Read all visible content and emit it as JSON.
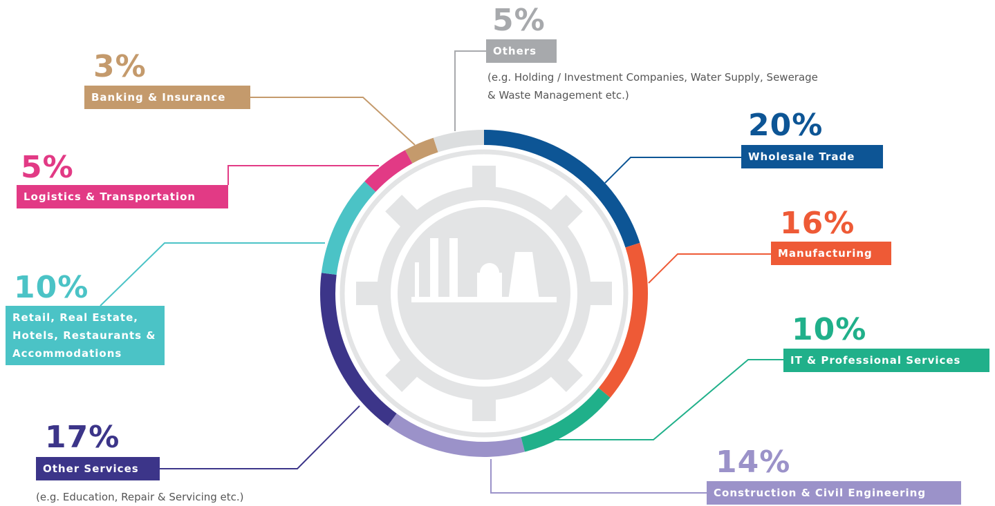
{
  "chart_data": {
    "type": "donut",
    "categories": [
      "Wholesale Trade",
      "Manufacturing",
      "IT & Professional Services",
      "Construction & Civil Engineering",
      "Other Services",
      "Retail, Real Estate, Hotels, Restaurants & Accommodations",
      "Logistics & Transportation",
      "Banking & Insurance",
      "Others"
    ],
    "values": [
      20,
      16,
      10,
      14,
      17,
      10,
      5,
      3,
      5
    ],
    "value_labels": [
      "20%",
      "16%",
      "10%",
      "14%",
      "17%",
      "10%",
      "5%",
      "3%",
      "5%"
    ],
    "colors": [
      "#0d5595",
      "#ee5a36",
      "#20b08a",
      "#9b92c9",
      "#3c3589",
      "#4bc3c6",
      "#e23a85",
      "#c49a6c",
      "#a7a9ac"
    ],
    "annotations": [
      "(e.g. Education, Repair & Servicing etc.)",
      "(e.g. Holding / Investment Companies, Water Supply, Sewerage & Waste Management etc.)"
    ]
  }
}
